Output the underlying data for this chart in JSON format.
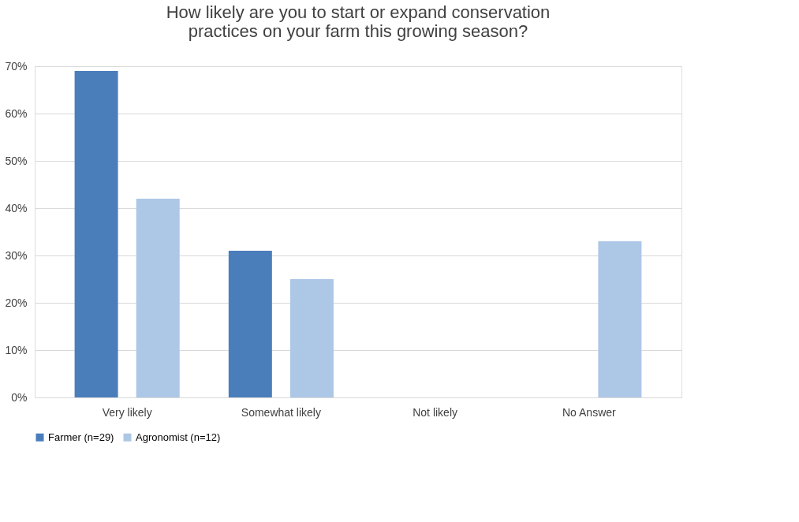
{
  "chart_data": {
    "type": "bar",
    "title": "How likely are you to start or expand conservation practices on your farm this growing season?",
    "categories": [
      "Very likely",
      "Somewhat likely",
      "Not likely",
      "No Answer"
    ],
    "series": [
      {
        "name": "Farmer (n=29)",
        "color": "#4a7ebb",
        "values": [
          69,
          31,
          0,
          0
        ]
      },
      {
        "name": "Agronomist (n=12)",
        "color": "#adc7e6",
        "values": [
          42,
          25,
          0,
          33
        ]
      }
    ],
    "ylim": [
      0,
      70
    ],
    "yticks": [
      {
        "value": 0,
        "label": "0%"
      },
      {
        "value": 10,
        "label": "10%"
      },
      {
        "value": 20,
        "label": "20%"
      },
      {
        "value": 30,
        "label": "30%"
      },
      {
        "value": 40,
        "label": "40%"
      },
      {
        "value": 50,
        "label": "50%"
      },
      {
        "value": 60,
        "label": "60%"
      },
      {
        "value": 70,
        "label": "70%"
      }
    ],
    "grid": "y",
    "legend": "bottom"
  }
}
